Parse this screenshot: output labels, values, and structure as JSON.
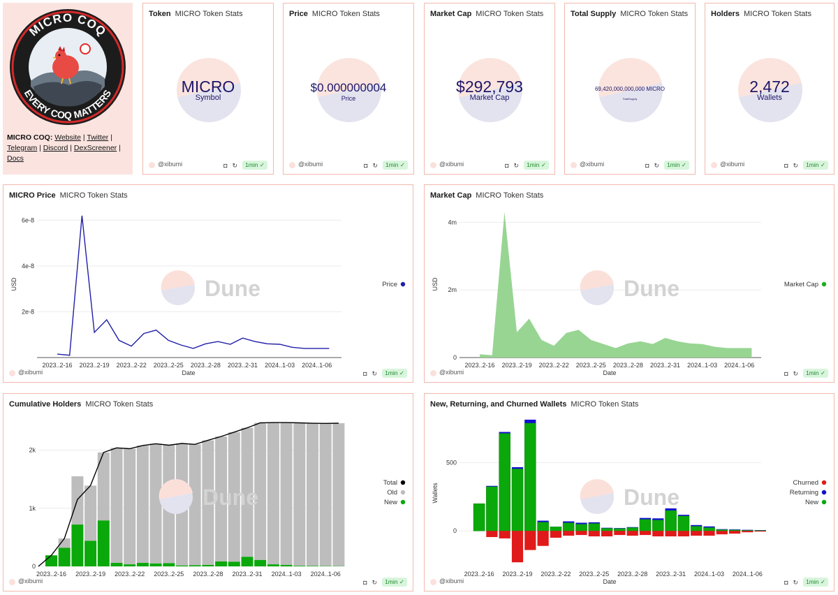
{
  "brand": {
    "logo_top_text": "MICRO COQ",
    "logo_bottom_text": "EVERY COQ MATTERS",
    "links_label": "MICRO COQ:",
    "links": [
      "Website",
      "Twitter",
      "Telegram",
      "Discord",
      "DexScreener",
      "Docs"
    ],
    "separator": " | "
  },
  "common": {
    "author": "@xibumi",
    "refresh_badge": "1min ✓",
    "watermark": "Dune"
  },
  "counters": [
    {
      "title": "Token",
      "subtitle": "MICRO Token Stats",
      "value": "MICRO",
      "label": "Symbol"
    },
    {
      "title": "Price",
      "subtitle": "MICRO Token Stats",
      "value": "$0.000000004",
      "label": "Price"
    },
    {
      "title": "Market Cap",
      "subtitle": "MICRO Token Stats",
      "value": "$292,793",
      "label": "Market Cap"
    },
    {
      "title": "Total Supply",
      "subtitle": "MICRO Token Stats",
      "value": "69,420,000,000,000 MICRO",
      "label": "TotalSupply"
    },
    {
      "title": "Holders",
      "subtitle": "MICRO Token Stats",
      "value": "2,472",
      "label": "Wallets"
    }
  ],
  "colors": {
    "border": "#f2b8ad",
    "price_line": "#1f1fa8",
    "marketcap_fill": "#8fd18a",
    "holders_total": "#000000",
    "holders_old": "#bdbdbd",
    "holders_new": "#0aa80a",
    "churned": "#e01a1a",
    "returning": "#1010d0",
    "new": "#0aa80a"
  },
  "chart_data": [
    {
      "id": "price",
      "type": "line",
      "title": "MICRO Price",
      "subtitle": "MICRO Token Stats",
      "xlabel": "Date",
      "ylabel": "USD",
      "ylim": [
        0,
        6.5e-08
      ],
      "yticks": [
        {
          "v": 0,
          "label": ""
        },
        {
          "v": 2e-08,
          "label": "2e-8"
        },
        {
          "v": 4e-08,
          "label": "4e-8"
        },
        {
          "v": 6e-08,
          "label": "6e-8"
        }
      ],
      "xticks": [
        "2023..2-16",
        "2023..2-19",
        "2023..2-22",
        "2023..2-25",
        "2023..2-28",
        "2023..2-31",
        "2024..1-03",
        "2024..1-06"
      ],
      "legend": [
        "Price"
      ],
      "series": [
        {
          "name": "Price",
          "values": [
            1.5e-09,
            1e-09,
            6.2e-08,
            1.1e-08,
            1.65e-08,
            7.5e-09,
            5e-09,
            1.05e-08,
            1.2e-08,
            7.5e-09,
            5.5e-09,
            4e-09,
            6e-09,
            7e-09,
            5.8e-09,
            8.5e-09,
            7e-09,
            6e-09,
            5.8e-09,
            4.5e-09,
            4e-09,
            4e-09,
            4e-09
          ]
        }
      ]
    },
    {
      "id": "marketcap",
      "type": "area",
      "title": "Market Cap",
      "subtitle": "MICRO Token Stats",
      "xlabel": "Date",
      "ylabel": "USD",
      "ylim": [
        0,
        4400000
      ],
      "yticks": [
        {
          "v": 0,
          "label": "0"
        },
        {
          "v": 2000000,
          "label": "2m"
        },
        {
          "v": 4000000,
          "label": "4m"
        }
      ],
      "xticks": [
        "2023..2-16",
        "2023..2-19",
        "2023..2-22",
        "2023..2-25",
        "2023..2-28",
        "2023..2-31",
        "2024..1-03",
        "2024..1-06"
      ],
      "legend": [
        "Market Cap"
      ],
      "series": [
        {
          "name": "Market Cap",
          "values": [
            100000,
            70000,
            4300000,
            750000,
            1150000,
            520000,
            350000,
            730000,
            820000,
            520000,
            400000,
            280000,
            420000,
            480000,
            400000,
            580000,
            480000,
            420000,
            400000,
            320000,
            280000,
            280000,
            280000
          ]
        }
      ]
    },
    {
      "id": "holders",
      "type": "bar",
      "title": "Cumulative Holders",
      "subtitle": "MICRO Token Stats",
      "xlabel": "",
      "ylabel": "",
      "ylim": [
        0,
        2560
      ],
      "yticks": [
        {
          "v": 0,
          "label": "0"
        },
        {
          "v": 1000,
          "label": "1k"
        },
        {
          "v": 2000,
          "label": "2k"
        }
      ],
      "xticks": [
        "2023..2-16",
        "2023..2-19",
        "2023..2-22",
        "2023..2-25",
        "2023..2-28",
        "2023..2-31",
        "2024..1-03",
        "2024..1-06"
      ],
      "legend": [
        "Total",
        "Old",
        "New"
      ],
      "series": [
        {
          "name": "New",
          "values": [
            190,
            320,
            720,
            440,
            790,
            60,
            35,
            60,
            50,
            55,
            15,
            20,
            25,
            85,
            80,
            165,
            110,
            35,
            25,
            10,
            8,
            5,
            4
          ]
        },
        {
          "name": "Old",
          "values": [
            0,
            160,
            830,
            950,
            1170,
            1980,
            1990,
            2020,
            2060,
            2030,
            2100,
            2080,
            2145,
            2150,
            2230,
            2220,
            2360,
            2440,
            2450,
            2460,
            2455,
            2455,
            2460
          ]
        },
        {
          "name": "Total",
          "values": [
            190,
            480,
            1150,
            1390,
            1960,
            2040,
            2025,
            2080,
            2110,
            2085,
            2115,
            2100,
            2170,
            2235,
            2310,
            2385,
            2470,
            2475,
            2475,
            2470,
            2463,
            2460,
            2464
          ]
        }
      ]
    },
    {
      "id": "wallets",
      "type": "bar",
      "title": "New, Returning, and Churned Wallets",
      "subtitle": "MICRO Token Stats",
      "xlabel": "Date",
      "ylabel": "Wallets",
      "ylim": [
        -270,
        830
      ],
      "yticks": [
        {
          "v": 0,
          "label": "0"
        },
        {
          "v": 500,
          "label": "500"
        }
      ],
      "xticks": [
        "2023..2-16",
        "2023..2-19",
        "2023..2-22",
        "2023..2-25",
        "2023..2-28",
        "2023..2-31",
        "2024..1-03",
        "2024..1-06"
      ],
      "legend": [
        "Churned",
        "Returning",
        "New"
      ],
      "series": [
        {
          "name": "New",
          "values": [
            200,
            325,
            715,
            455,
            790,
            65,
            30,
            60,
            50,
            55,
            20,
            18,
            25,
            85,
            80,
            150,
            110,
            35,
            25,
            10,
            8,
            5,
            4
          ]
        },
        {
          "name": "Returning",
          "values": [
            0,
            5,
            10,
            12,
            25,
            10,
            0,
            10,
            10,
            8,
            3,
            3,
            3,
            10,
            12,
            15,
            8,
            8,
            8,
            3,
            3,
            3,
            2
          ]
        },
        {
          "name": "Churned",
          "values": [
            0,
            -45,
            -55,
            -230,
            -140,
            -110,
            -50,
            -35,
            -30,
            -40,
            -40,
            -30,
            -35,
            -30,
            -40,
            -40,
            -40,
            -35,
            -35,
            -25,
            -20,
            -10,
            -5
          ]
        }
      ]
    }
  ]
}
